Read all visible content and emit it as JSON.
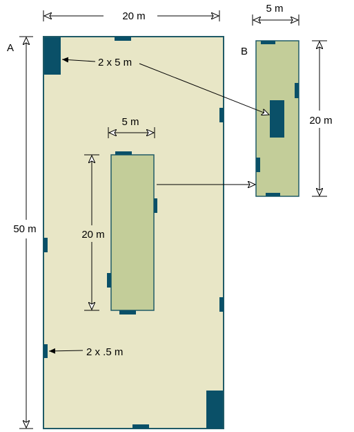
{
  "labels": {
    "room_a": "A",
    "room_b": "B",
    "width_a": "20 m",
    "height_a": "50 m",
    "width_inner": "5 m",
    "height_inner": "20 m",
    "width_b": "5 m",
    "height_b": "20 m",
    "patch_large": "2 x 5 m",
    "patch_small": "2 x .5 m"
  },
  "colors": {
    "room_fill": "#e8e6c6",
    "inner_fill": "#c3cd99",
    "border": "#1f5a66",
    "patch": "#0a5068"
  }
}
